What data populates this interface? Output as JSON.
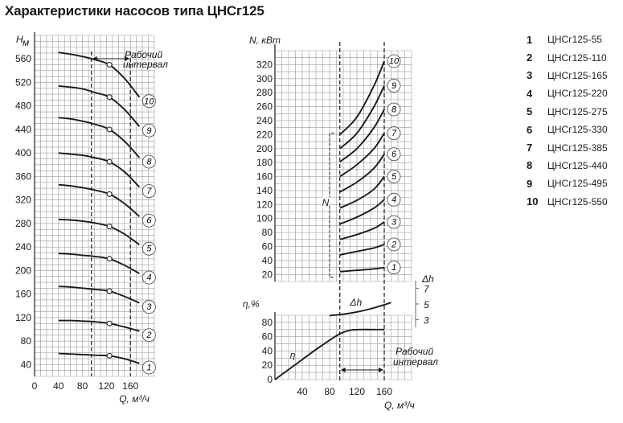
{
  "title": "Характеристики насосов типа ЦНСг125",
  "legend": [
    {
      "num": "1",
      "name": "ЦНСг125-55"
    },
    {
      "num": "2",
      "name": "ЦНСг125-110"
    },
    {
      "num": "3",
      "name": "ЦНСг125-165"
    },
    {
      "num": "4",
      "name": "ЦНСг125-220"
    },
    {
      "num": "5",
      "name": "ЦНСг125-275"
    },
    {
      "num": "6",
      "name": "ЦНСг125-330"
    },
    {
      "num": "7",
      "name": "ЦНСг125-385"
    },
    {
      "num": "8",
      "name": "ЦНСг125-440"
    },
    {
      "num": "9",
      "name": "ЦНСг125-495"
    },
    {
      "num": "10",
      "name": "ЦНСг125-550"
    }
  ],
  "chart_data": [
    {
      "type": "line",
      "ylabel": "Hм",
      "xlabel": "Q, м³/ч",
      "xlim": [
        0,
        200
      ],
      "ylim": [
        20,
        600
      ],
      "x_ticks": [
        0,
        40,
        80,
        120,
        160
      ],
      "y_ticks": [
        40,
        80,
        120,
        160,
        200,
        240,
        280,
        320,
        360,
        400,
        440,
        480,
        520,
        560
      ],
      "grid": true,
      "working_interval": {
        "from": 95,
        "to": 160,
        "label_line1": "Рабочий",
        "label_line2": "интервал"
      },
      "rated_flow": 125,
      "series": [
        {
          "name": "1",
          "x": [
            40,
            60,
            80,
            100,
            125,
            150,
            175
          ],
          "y": [
            59,
            58,
            57,
            56,
            55,
            50,
            42
          ]
        },
        {
          "name": "2",
          "x": [
            40,
            60,
            80,
            100,
            125,
            150,
            175
          ],
          "y": [
            115,
            115,
            114,
            113,
            110,
            104,
            97
          ]
        },
        {
          "name": "3",
          "x": [
            40,
            60,
            80,
            100,
            125,
            150,
            175
          ],
          "y": [
            173,
            172,
            170,
            168,
            165,
            156,
            145
          ]
        },
        {
          "name": "4",
          "x": [
            40,
            60,
            80,
            100,
            125,
            150,
            175
          ],
          "y": [
            229,
            228,
            226,
            224,
            220,
            209,
            195
          ]
        },
        {
          "name": "5",
          "x": [
            40,
            60,
            80,
            100,
            125,
            150,
            175
          ],
          "y": [
            287,
            286,
            284,
            281,
            275,
            262,
            244
          ]
        },
        {
          "name": "6",
          "x": [
            40,
            60,
            80,
            100,
            125,
            150,
            175
          ],
          "y": [
            346,
            344,
            341,
            337,
            330,
            314,
            292
          ]
        },
        {
          "name": "7",
          "x": [
            40,
            60,
            80,
            100,
            125,
            150,
            175
          ],
          "y": [
            400,
            398,
            396,
            392,
            385,
            368,
            342
          ]
        },
        {
          "name": "8",
          "x": [
            40,
            60,
            80,
            100,
            125,
            150,
            175
          ],
          "y": [
            460,
            458,
            454,
            449,
            440,
            420,
            392
          ]
        },
        {
          "name": "9",
          "x": [
            40,
            60,
            80,
            100,
            125,
            150,
            175
          ],
          "y": [
            514,
            512,
            509,
            503,
            495,
            474,
            445
          ]
        },
        {
          "name": "10",
          "x": [
            40,
            60,
            80,
            100,
            125,
            150,
            175
          ],
          "y": [
            571,
            568,
            564,
            559,
            550,
            527,
            495
          ]
        }
      ]
    },
    {
      "type": "line",
      "ylabel": "N, кВт",
      "xlim": [
        0,
        200
      ],
      "ylim": [
        10,
        340
      ],
      "y_ticks": [
        20,
        40,
        60,
        80,
        100,
        120,
        140,
        160,
        180,
        200,
        220,
        240,
        260,
        280,
        300,
        320
      ],
      "grid": true,
      "bracket_label": "N",
      "series": [
        {
          "name": "1",
          "x": [
            95,
            120,
            145,
            160
          ],
          "y": [
            24,
            26,
            28,
            30
          ]
        },
        {
          "name": "2",
          "x": [
            95,
            120,
            145,
            160
          ],
          "y": [
            48,
            53,
            58,
            63
          ]
        },
        {
          "name": "3",
          "x": [
            95,
            120,
            145,
            160
          ],
          "y": [
            70,
            77,
            86,
            95
          ]
        },
        {
          "name": "4",
          "x": [
            95,
            120,
            145,
            160
          ],
          "y": [
            92,
            102,
            115,
            127
          ]
        },
        {
          "name": "5",
          "x": [
            95,
            120,
            145,
            160
          ],
          "y": [
            115,
            126,
            142,
            160
          ]
        },
        {
          "name": "6",
          "x": [
            95,
            120,
            145,
            160
          ],
          "y": [
            138,
            152,
            172,
            192
          ]
        },
        {
          "name": "7",
          "x": [
            95,
            120,
            145,
            160
          ],
          "y": [
            160,
            177,
            200,
            222
          ]
        },
        {
          "name": "8",
          "x": [
            95,
            120,
            145,
            160
          ],
          "y": [
            181,
            200,
            230,
            256
          ]
        },
        {
          "name": "9",
          "x": [
            95,
            120,
            145,
            160
          ],
          "y": [
            200,
            222,
            260,
            290
          ]
        },
        {
          "name": "10",
          "x": [
            95,
            120,
            145,
            160
          ],
          "y": [
            220,
            245,
            290,
            325
          ]
        }
      ]
    },
    {
      "type": "line",
      "ylabel": "η,%",
      "xlabel": "Q, м³/ч",
      "xlim": [
        0,
        200
      ],
      "ylim": [
        0,
        90
      ],
      "x_ticks": [
        40,
        80,
        120,
        160
      ],
      "y_ticks": [
        0,
        20,
        40,
        60,
        80
      ],
      "grid": true,
      "working_interval": {
        "from": 95,
        "to": 160,
        "label_line1": "Рабочий",
        "label_line2": "интервал"
      },
      "series": [
        {
          "name": "η",
          "x": [
            0,
            20,
            40,
            60,
            80,
            95,
            110,
            125,
            140,
            160
          ],
          "y": [
            0,
            14,
            28,
            42,
            55,
            64,
            69,
            70,
            70,
            70
          ]
        }
      ]
    },
    {
      "type": "line",
      "ylabel": "Δh",
      "y_ticks": [
        3,
        5,
        7
      ],
      "series": [
        {
          "name": "Δh",
          "x": [
            80,
            100,
            120,
            140,
            160,
            170
          ],
          "y": [
            3.0,
            3.3,
            3.8,
            4.5,
            5.4,
            5.9
          ]
        }
      ]
    }
  ]
}
